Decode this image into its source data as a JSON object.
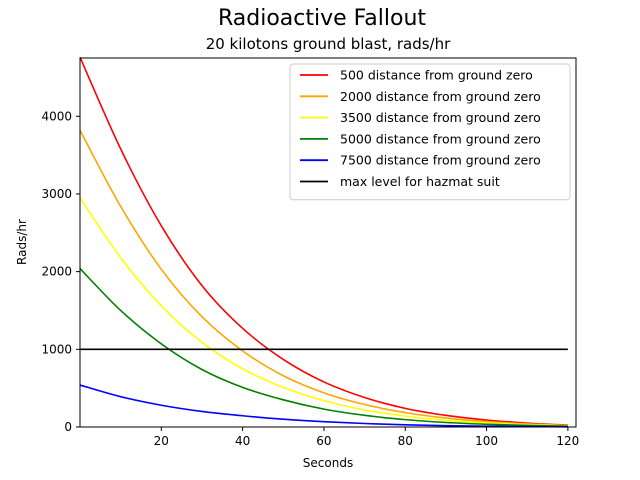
{
  "chart_data": {
    "type": "line",
    "title": "Radioactive Fallout",
    "subtitle": "20 kilotons ground blast, rads/hr",
    "xlabel": "Seconds",
    "ylabel": "Rads/hr",
    "xlim": [
      0,
      122
    ],
    "ylim": [
      0,
      4750
    ],
    "xticks": [
      20,
      40,
      60,
      80,
      100,
      120
    ],
    "yticks": [
      0,
      1000,
      2000,
      3000,
      4000
    ],
    "legend_position": "top-right",
    "grid": false,
    "x": [
      0,
      10,
      20,
      30,
      40,
      50,
      60,
      70,
      80,
      90,
      100,
      110,
      120
    ],
    "series": [
      {
        "name": "500 distance from ground zero",
        "color": "#ff0000",
        "values": [
          4760,
          3580,
          2590,
          1820,
          1270,
          870,
          580,
          380,
          240,
          150,
          90,
          50,
          25
        ]
      },
      {
        "name": "2000 distance from ground zero",
        "color": "#ffa500",
        "values": [
          3820,
          2840,
          2030,
          1420,
          980,
          660,
          440,
          290,
          185,
          115,
          70,
          40,
          20
        ]
      },
      {
        "name": "3500 distance from ground zero",
        "color": "#ffff00",
        "values": [
          2950,
          2180,
          1560,
          1090,
          750,
          510,
          340,
          220,
          140,
          85,
          52,
          30,
          15
        ]
      },
      {
        "name": "5000 distance from ground zero",
        "color": "#008000",
        "values": [
          2040,
          1500,
          1070,
          740,
          510,
          350,
          230,
          150,
          95,
          58,
          35,
          20,
          10
        ]
      },
      {
        "name": "7500 distance from ground zero",
        "color": "#0000ff",
        "values": [
          540,
          390,
          280,
          200,
          145,
          100,
          68,
          45,
          28,
          17,
          10,
          6,
          3
        ]
      },
      {
        "name": "max level for hazmat suit",
        "color": "#000000",
        "values": [
          1000,
          1000,
          1000,
          1000,
          1000,
          1000,
          1000,
          1000,
          1000,
          1000,
          1000,
          1000,
          1000
        ]
      }
    ]
  }
}
